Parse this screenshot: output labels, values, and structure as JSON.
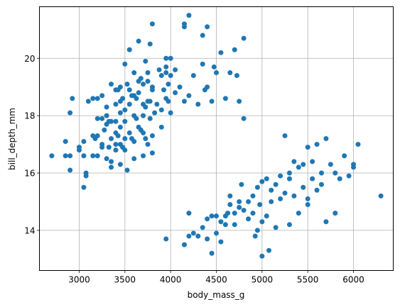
{
  "chart_data": {
    "type": "scatter",
    "xlabel": "body_mass_g",
    "ylabel": "bill_depth_mm",
    "xlim": [
      2565,
      6435
    ],
    "ylim": [
      12.6,
      21.8
    ],
    "xticks": [
      3000,
      3500,
      4000,
      4500,
      5000,
      5500,
      6000
    ],
    "yticks": [
      14,
      16,
      18,
      20
    ],
    "grid": true,
    "marker_color": "#1f77b4",
    "points": [
      [
        2700,
        16.6
      ],
      [
        2850,
        17.1
      ],
      [
        2850,
        16.6
      ],
      [
        2900,
        18.1
      ],
      [
        2900,
        16.1
      ],
      [
        2900,
        16.6
      ],
      [
        2925,
        18.6
      ],
      [
        3000,
        16.8
      ],
      [
        3000,
        16.9
      ],
      [
        3050,
        15.5
      ],
      [
        3050,
        17.1
      ],
      [
        3050,
        16.6
      ],
      [
        3075,
        15.9
      ],
      [
        3075,
        16.0
      ],
      [
        3100,
        18.5
      ],
      [
        3150,
        17.3
      ],
      [
        3150,
        16.6
      ],
      [
        3150,
        18.6
      ],
      [
        3175,
        17.2
      ],
      [
        3200,
        18.6
      ],
      [
        3200,
        17.9
      ],
      [
        3200,
        16.6
      ],
      [
        3200,
        17.3
      ],
      [
        3250,
        17.9
      ],
      [
        3250,
        18.7
      ],
      [
        3250,
        17.0
      ],
      [
        3250,
        16.9
      ],
      [
        3275,
        17.5
      ],
      [
        3300,
        16.5
      ],
      [
        3300,
        17.7
      ],
      [
        3300,
        18.0
      ],
      [
        3300,
        18.3
      ],
      [
        3325,
        17.8
      ],
      [
        3325,
        16.9
      ],
      [
        3350,
        17.8
      ],
      [
        3350,
        17.2
      ],
      [
        3350,
        16.4
      ],
      [
        3350,
        19.1
      ],
      [
        3350,
        16.2
      ],
      [
        3400,
        17.4
      ],
      [
        3400,
        17.8
      ],
      [
        3400,
        18.4
      ],
      [
        3400,
        18.9
      ],
      [
        3400,
        16.8
      ],
      [
        3400,
        17.0
      ],
      [
        3425,
        18.9
      ],
      [
        3425,
        17.3
      ],
      [
        3450,
        18.1
      ],
      [
        3450,
        17.6
      ],
      [
        3450,
        18.5
      ],
      [
        3450,
        17.0
      ],
      [
        3450,
        16.3
      ],
      [
        3450,
        19.0
      ],
      [
        3475,
        18.6
      ],
      [
        3475,
        16.9
      ],
      [
        3500,
        17.2
      ],
      [
        3500,
        17.8
      ],
      [
        3500,
        19.8
      ],
      [
        3500,
        18.2
      ],
      [
        3500,
        16.8
      ],
      [
        3525,
        19.1
      ],
      [
        3525,
        16.1
      ],
      [
        3550,
        18.4
      ],
      [
        3550,
        20.3
      ],
      [
        3550,
        17.4
      ],
      [
        3550,
        18.9
      ],
      [
        3575,
        18.7
      ],
      [
        3575,
        17.2
      ],
      [
        3600,
        18.0
      ],
      [
        3600,
        19.5
      ],
      [
        3600,
        17.1
      ],
      [
        3600,
        16.5
      ],
      [
        3600,
        18.7
      ],
      [
        3625,
        17.9
      ],
      [
        3625,
        18.6
      ],
      [
        3650,
        17.6
      ],
      [
        3650,
        20.6
      ],
      [
        3650,
        18.8
      ],
      [
        3650,
        19.2
      ],
      [
        3675,
        17.5
      ],
      [
        3675,
        19.3
      ],
      [
        3700,
        19.1
      ],
      [
        3700,
        17.4
      ],
      [
        3700,
        18.0
      ],
      [
        3700,
        18.4
      ],
      [
        3700,
        16.6
      ],
      [
        3725,
        19.9
      ],
      [
        3725,
        17.2
      ],
      [
        3725,
        18.3
      ],
      [
        3750,
        19.5
      ],
      [
        3750,
        18.5
      ],
      [
        3750,
        19.2
      ],
      [
        3750,
        17.0
      ],
      [
        3775,
        18.5
      ],
      [
        3775,
        20.5
      ],
      [
        3775,
        17.9
      ],
      [
        3800,
        21.2
      ],
      [
        3800,
        18.9
      ],
      [
        3800,
        19.0
      ],
      [
        3800,
        17.3
      ],
      [
        3800,
        16.7
      ],
      [
        3825,
        18.1
      ],
      [
        3850,
        18.4
      ],
      [
        3875,
        19.6
      ],
      [
        3900,
        19.4
      ],
      [
        3900,
        17.6
      ],
      [
        3900,
        18.2
      ],
      [
        3925,
        18.9
      ],
      [
        3950,
        19.7
      ],
      [
        3950,
        18.6
      ],
      [
        3950,
        19.5
      ],
      [
        3950,
        20.0
      ],
      [
        3950,
        13.7
      ],
      [
        3975,
        18.5
      ],
      [
        3975,
        19.1
      ],
      [
        4000,
        20.0
      ],
      [
        4000,
        18.1
      ],
      [
        4000,
        19.4
      ],
      [
        4050,
        19.6
      ],
      [
        4050,
        18.8
      ],
      [
        4100,
        19.0
      ],
      [
        4150,
        18.5
      ],
      [
        4150,
        21.1
      ],
      [
        4150,
        21.2
      ],
      [
        4150,
        13.5
      ],
      [
        4200,
        14.6
      ],
      [
        4200,
        21.5
      ],
      [
        4200,
        13.8
      ],
      [
        4200,
        18.7
      ],
      [
        4250,
        19.4
      ],
      [
        4250,
        13.9
      ],
      [
        4300,
        18.4
      ],
      [
        4300,
        13.8
      ],
      [
        4350,
        19.8
      ],
      [
        4350,
        20.8
      ],
      [
        4350,
        14.1
      ],
      [
        4375,
        18.9
      ],
      [
        4400,
        21.1
      ],
      [
        4400,
        19.0
      ],
      [
        4400,
        14.4
      ],
      [
        4400,
        13.7
      ],
      [
        4450,
        18.5
      ],
      [
        4450,
        14.5
      ],
      [
        4450,
        13.2
      ],
      [
        4475,
        19.7
      ],
      [
        4500,
        19.5
      ],
      [
        4500,
        14.5
      ],
      [
        4500,
        13.9
      ],
      [
        4550,
        20.2
      ],
      [
        4550,
        14.3
      ],
      [
        4550,
        13.6
      ],
      [
        4600,
        18.6
      ],
      [
        4600,
        14.5
      ],
      [
        4600,
        14.2
      ],
      [
        4625,
        14.6
      ],
      [
        4650,
        19.5
      ],
      [
        4650,
        14.9
      ],
      [
        4650,
        15.2
      ],
      [
        4700,
        20.3
      ],
      [
        4700,
        14.2
      ],
      [
        4700,
        14.6
      ],
      [
        4725,
        19.4
      ],
      [
        4750,
        18.5
      ],
      [
        4750,
        15.0
      ],
      [
        4750,
        14.8
      ],
      [
        4775,
        15.6
      ],
      [
        4800,
        17.9
      ],
      [
        4800,
        20.7
      ],
      [
        4800,
        14.7
      ],
      [
        4850,
        15.0
      ],
      [
        4850,
        14.4
      ],
      [
        4900,
        14.6
      ],
      [
        4900,
        15.2
      ],
      [
        4925,
        13.8
      ],
      [
        4950,
        15.5
      ],
      [
        4950,
        14.0
      ],
      [
        4975,
        14.9
      ],
      [
        5000,
        15.7
      ],
      [
        5000,
        13.1
      ],
      [
        5000,
        14.3
      ],
      [
        5050,
        15.8
      ],
      [
        5050,
        14.5
      ],
      [
        5075,
        13.3
      ],
      [
        5100,
        15.4
      ],
      [
        5100,
        15.0
      ],
      [
        5150,
        15.6
      ],
      [
        5150,
        14.1
      ],
      [
        5200,
        15.9
      ],
      [
        5200,
        15.1
      ],
      [
        5250,
        17.3
      ],
      [
        5250,
        15.3
      ],
      [
        5300,
        16.0
      ],
      [
        5300,
        14.2
      ],
      [
        5300,
        15.8
      ],
      [
        5350,
        16.4
      ],
      [
        5350,
        15.2
      ],
      [
        5400,
        16.2
      ],
      [
        5400,
        14.6
      ],
      [
        5450,
        15.5
      ],
      [
        5450,
        16.3
      ],
      [
        5500,
        16.9
      ],
      [
        5500,
        15.1
      ],
      [
        5500,
        14.9
      ],
      [
        5550,
        16.4
      ],
      [
        5550,
        15.8
      ],
      [
        5600,
        17.0
      ],
      [
        5600,
        15.4
      ],
      [
        5650,
        16.0
      ],
      [
        5650,
        15.6
      ],
      [
        5700,
        17.2
      ],
      [
        5700,
        14.3
      ],
      [
        5750,
        16.3
      ],
      [
        5800,
        16.0
      ],
      [
        5800,
        14.6
      ],
      [
        5850,
        15.8
      ],
      [
        5900,
        16.6
      ],
      [
        5950,
        15.9
      ],
      [
        6000,
        16.2
      ],
      [
        6000,
        16.3
      ],
      [
        6050,
        17.0
      ],
      [
        6300,
        15.2
      ]
    ]
  }
}
